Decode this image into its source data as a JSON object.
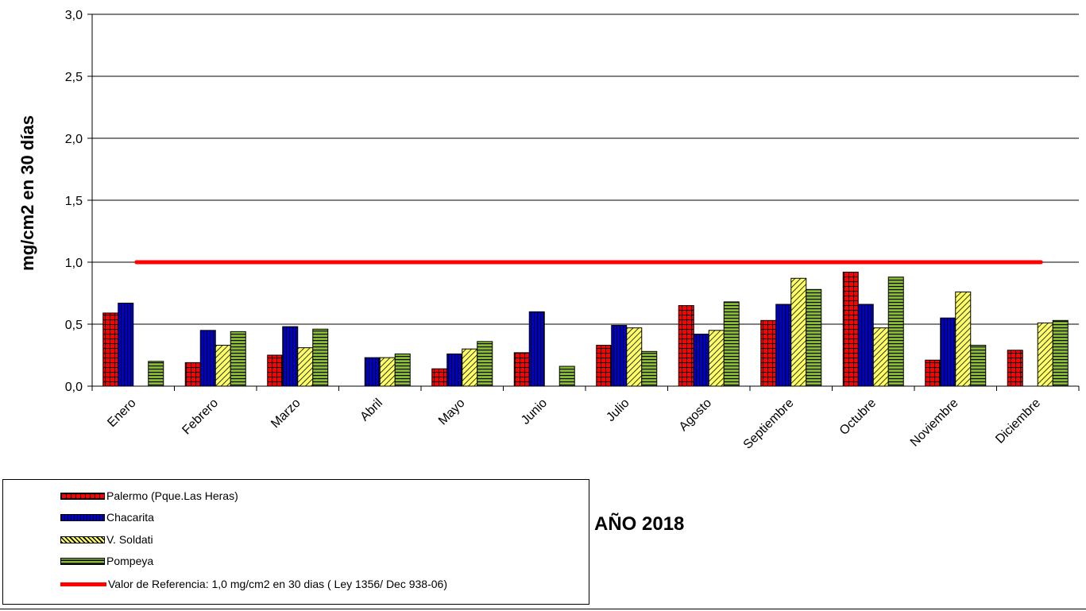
{
  "chart_data": {
    "type": "bar",
    "title": "AÑO 2018",
    "ylabel": "mg/cm2 en 30 días",
    "xlabel": "",
    "ylim": [
      0,
      3.0
    ],
    "yticks": [
      "0,0",
      "0,5",
      "1,0",
      "1,5",
      "2,0",
      "2,5",
      "3,0"
    ],
    "grid": true,
    "legend_position": "bottom-left",
    "categories": [
      "Enero",
      "Febrero",
      "Marzo",
      "Abril",
      "Mayo",
      "Junio",
      "Julio",
      "Agosto",
      "Septiembre",
      "Octubre",
      "Noviembre",
      "Diciembre"
    ],
    "series": [
      {
        "name": "Palermo (Pque.Las Heras)",
        "color": "#ff0000",
        "pattern": "grid",
        "values": [
          0.59,
          0.19,
          0.25,
          null,
          0.14,
          0.27,
          0.33,
          0.65,
          0.53,
          0.92,
          0.21,
          0.29
        ]
      },
      {
        "name": "Chacarita",
        "color": "#0000cc",
        "pattern": "vertical",
        "values": [
          0.67,
          0.45,
          0.48,
          0.23,
          0.26,
          0.6,
          0.49,
          0.42,
          0.66,
          0.66,
          0.55,
          null
        ]
      },
      {
        "name": "V. Soldati",
        "color": "#ffff66",
        "pattern": "diagonal",
        "values": [
          null,
          0.33,
          0.31,
          0.23,
          0.3,
          null,
          0.47,
          0.45,
          0.87,
          0.47,
          0.76,
          0.51
        ]
      },
      {
        "name": "Pompeya",
        "color": "#88bb33",
        "pattern": "horizontal",
        "values": [
          0.2,
          0.44,
          0.46,
          0.26,
          0.36,
          0.16,
          0.28,
          0.68,
          0.78,
          0.88,
          0.33,
          0.53
        ]
      }
    ],
    "reference_line": {
      "name": "Valor de Referencia: 1,0 mg/cm2 en 30 dias ( Ley 1356/ Dec 938-06)",
      "value": 1.0,
      "color": "#ff0000"
    }
  }
}
